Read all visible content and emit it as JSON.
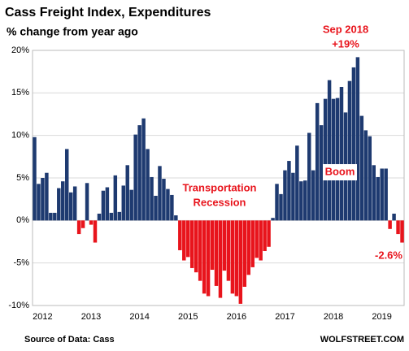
{
  "chart_data": {
    "type": "bar",
    "title": "Cass Freight Index, Expenditures",
    "subtitle": "% change from year ago",
    "source": "Source of Data: Cass",
    "brand": "WOLFSTREET.COM",
    "annotations": [
      "Sep 2018",
      "+19%",
      "Transportation",
      "Recession",
      "Boom",
      "-2.6%"
    ],
    "categories": [
      "2012",
      null,
      null,
      null,
      null,
      null,
      null,
      null,
      null,
      null,
      null,
      null,
      "2013",
      null,
      null,
      null,
      null,
      null,
      null,
      null,
      null,
      null,
      null,
      null,
      "2014",
      null,
      null,
      null,
      null,
      null,
      null,
      null,
      null,
      null,
      null,
      null,
      "2015",
      null,
      null,
      null,
      null,
      null,
      null,
      null,
      null,
      null,
      null,
      null,
      "2016",
      null,
      null,
      null,
      null,
      null,
      null,
      null,
      null,
      null,
      null,
      null,
      "2017",
      null,
      null,
      null,
      null,
      null,
      null,
      null,
      null,
      null,
      null,
      null,
      "2018",
      null,
      null,
      null,
      null,
      null,
      null,
      null,
      null,
      null,
      null,
      null,
      "2019",
      null,
      null,
      null,
      null,
      null,
      null,
      null
    ],
    "values": [
      9.8,
      4.3,
      5.0,
      5.6,
      0.9,
      0.9,
      3.8,
      4.6,
      8.4,
      3.3,
      4.0,
      -1.6,
      -0.9,
      4.4,
      -0.5,
      -2.6,
      0.8,
      3.5,
      3.9,
      0.9,
      5.3,
      1.0,
      4.1,
      6.5,
      3.6,
      10.1,
      11.2,
      12.0,
      8.4,
      5.1,
      2.9,
      6.4,
      4.9,
      3.7,
      3.0,
      0.6,
      -3.5,
      -4.7,
      -4.3,
      -5.6,
      -6.1,
      -7.1,
      -8.6,
      -8.9,
      -5.8,
      -7.7,
      -9.1,
      -5.9,
      -7.1,
      -8.6,
      -8.9,
      -9.8,
      -7.8,
      -6.4,
      -5.5,
      -4.4,
      -4.7,
      -3.6,
      -3.1,
      0.3,
      4.3,
      3.1,
      5.9,
      7.0,
      5.6,
      8.8,
      4.6,
      4.7,
      10.3,
      5.9,
      13.8,
      11.2,
      14.3,
      16.5,
      14.3,
      14.4,
      15.7,
      12.7,
      16.4,
      18.0,
      19.2,
      12.3,
      10.6,
      9.9,
      6.5,
      5.1,
      6.1,
      6.1,
      -1.0,
      0.8,
      -1.6,
      -2.6
    ],
    "color": "#1e3a70",
    "negative_color": "#e8141c",
    "ylim": [
      -10,
      20
    ],
    "yticks": [
      {
        "value": -10,
        "label": "-10%"
      },
      {
        "value": -5,
        "label": "-5%"
      },
      {
        "value": 0,
        "label": "0%"
      },
      {
        "value": 5,
        "label": "5%"
      },
      {
        "value": 10,
        "label": "10%"
      },
      {
        "value": 15,
        "label": "15%"
      },
      {
        "value": 20,
        "label": "20%"
      }
    ],
    "grid": true
  }
}
